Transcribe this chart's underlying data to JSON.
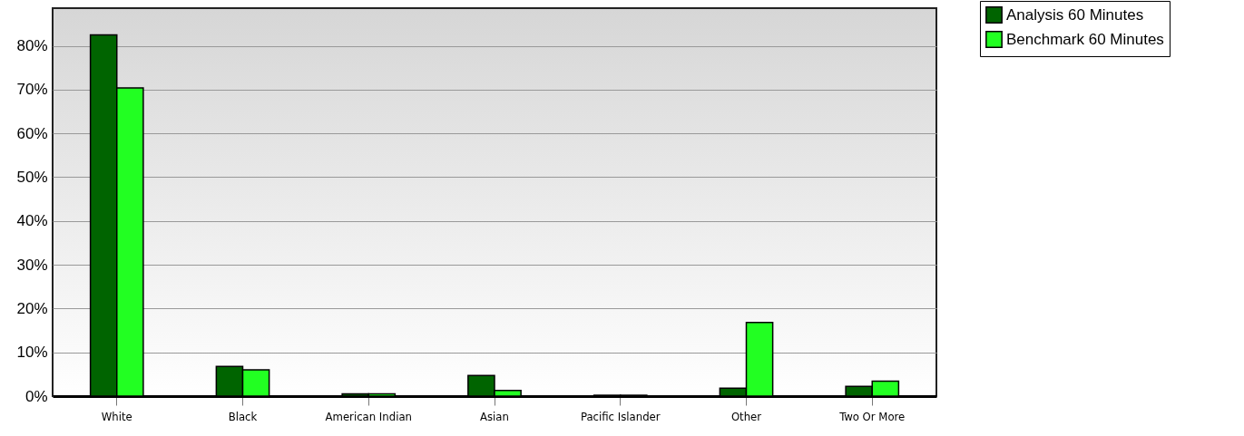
{
  "chart_data": {
    "type": "bar",
    "categories": [
      "White",
      "Black",
      "American Indian",
      "Asian",
      "Pacific Islander",
      "Other",
      "Two Or More"
    ],
    "series": [
      {
        "name": "Analysis 60 Minutes",
        "color": "#006400",
        "values": [
          82.5,
          6.8,
          0.5,
          4.7,
          0.2,
          1.8,
          2.2
        ]
      },
      {
        "name": "Benchmark 60 Minutes",
        "color": "#22ff22",
        "values": [
          70.4,
          6.0,
          0.5,
          1.3,
          0.2,
          16.8,
          3.4
        ]
      }
    ],
    "ylim": [
      0,
      88.6
    ],
    "yticks": [
      {
        "value": 0,
        "label": "0%"
      },
      {
        "value": 10,
        "label": "10%"
      },
      {
        "value": 20,
        "label": "20%"
      },
      {
        "value": 30,
        "label": "30%"
      },
      {
        "value": 40,
        "label": "40%"
      },
      {
        "value": 50,
        "label": "50%"
      },
      {
        "value": 60,
        "label": "60%"
      },
      {
        "value": 70,
        "label": "70%"
      },
      {
        "value": 80,
        "label": "80%"
      }
    ],
    "grid": "y",
    "legend": "top right"
  }
}
